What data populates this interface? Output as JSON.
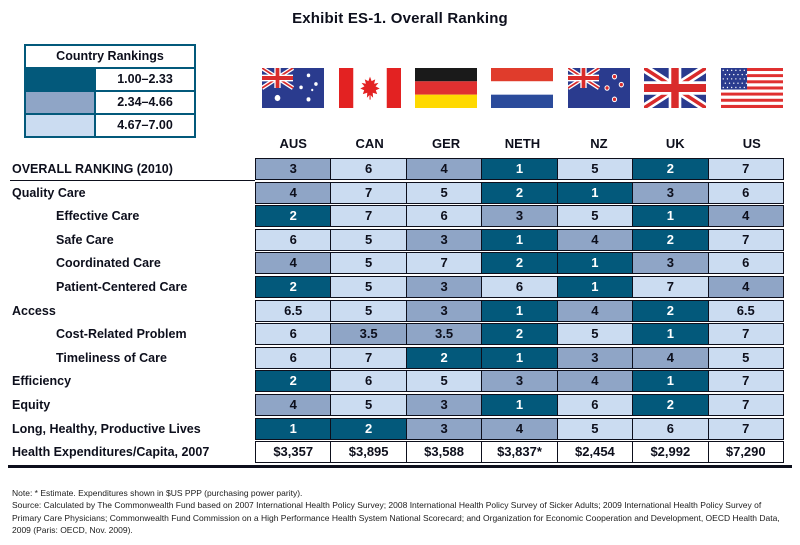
{
  "title": "Exhibit ES-1. Overall Ranking",
  "legend": {
    "title": "Country Rankings",
    "bands": [
      {
        "label": "1.00–2.33",
        "color": "#03597B"
      },
      {
        "label": "2.34–4.66",
        "color": "#8FA5C6"
      },
      {
        "label": "4.67–7.00",
        "color": "#CBDCF1"
      }
    ]
  },
  "countries": [
    {
      "code": "AUS",
      "flag": "australia-flag"
    },
    {
      "code": "CAN",
      "flag": "canada-flag"
    },
    {
      "code": "GER",
      "flag": "germany-flag"
    },
    {
      "code": "NETH",
      "flag": "netherlands-flag"
    },
    {
      "code": "NZ",
      "flag": "new-zealand-flag"
    },
    {
      "code": "UK",
      "flag": "uk-flag"
    },
    {
      "code": "US",
      "flag": "us-flag"
    }
  ],
  "chart_data": {
    "type": "table",
    "title": "Exhibit ES-1. Overall Ranking",
    "columns": [
      "AUS",
      "CAN",
      "GER",
      "NETH",
      "NZ",
      "UK",
      "US"
    ],
    "color_coding": "cells shaded by rank band: 1.00–2.33 dark teal, 2.34–4.66 medium slate blue, 4.67–7.00 light blue; expenditure row white",
    "rows": [
      {
        "label": "OVERALL RANKING (2010)",
        "emphasis": true,
        "indent": false,
        "values": [
          3,
          6,
          4,
          1,
          5,
          2,
          7
        ]
      },
      {
        "label": "Quality Care",
        "emphasis": false,
        "indent": false,
        "values": [
          4,
          7,
          5,
          2,
          1,
          3,
          6
        ]
      },
      {
        "label": "Effective Care",
        "emphasis": false,
        "indent": true,
        "values": [
          2,
          7,
          6,
          3,
          5,
          1,
          4
        ]
      },
      {
        "label": "Safe Care",
        "emphasis": false,
        "indent": true,
        "values": [
          6,
          5,
          3,
          1,
          4,
          2,
          7
        ]
      },
      {
        "label": "Coordinated Care",
        "emphasis": false,
        "indent": true,
        "values": [
          4,
          5,
          7,
          2,
          1,
          3,
          6
        ]
      },
      {
        "label": "Patient-Centered Care",
        "emphasis": false,
        "indent": true,
        "values": [
          2,
          5,
          3,
          6,
          1,
          7,
          4
        ]
      },
      {
        "label": "Access",
        "emphasis": false,
        "indent": false,
        "values": [
          6.5,
          5,
          3,
          1,
          4,
          2,
          6.5
        ]
      },
      {
        "label": "Cost-Related Problem",
        "emphasis": false,
        "indent": true,
        "values": [
          6,
          3.5,
          3.5,
          2,
          5,
          1,
          7
        ]
      },
      {
        "label": "Timeliness of Care",
        "emphasis": false,
        "indent": true,
        "values": [
          6,
          7,
          2,
          1,
          3,
          4,
          5
        ]
      },
      {
        "label": "Efficiency",
        "emphasis": false,
        "indent": false,
        "values": [
          2,
          6,
          5,
          3,
          4,
          1,
          7
        ]
      },
      {
        "label": "Equity",
        "emphasis": false,
        "indent": false,
        "values": [
          4,
          5,
          3,
          1,
          6,
          2,
          7
        ]
      },
      {
        "label": "Long, Healthy, Productive Lives",
        "emphasis": false,
        "indent": false,
        "values": [
          1,
          2,
          3,
          4,
          5,
          6,
          7
        ]
      },
      {
        "label": "Health Expenditures/Capita, 2007",
        "emphasis": false,
        "indent": false,
        "kind": "currency",
        "values": [
          "$3,357",
          "$3,895",
          "$3,588",
          "$3,837*",
          "$2,454",
          "$2,992",
          "$7,290"
        ]
      }
    ]
  },
  "notes": {
    "note": "Note: * Estimate. Expenditures shown in $US PPP (purchasing power parity).",
    "source": "Source: Calculated by The Commonwealth Fund based on 2007 International Health Policy Survey; 2008 International Health Policy Survey of Sicker Adults; 2009 International Health Policy Survey of Primary Care Physicians; Commonwealth Fund Commission on a High Performance Health System National Scorecard; and Organization for Economic Cooperation and Development, OECD Health Data, 2009 (Paris: OECD, Nov. 2009)."
  }
}
